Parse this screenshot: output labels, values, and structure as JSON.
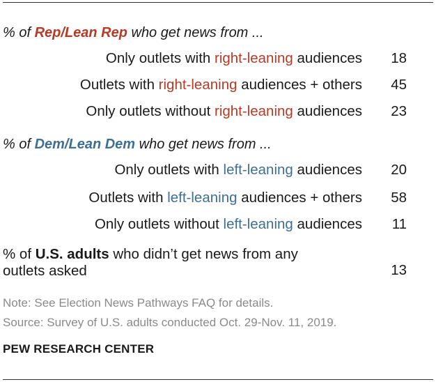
{
  "chart_data": {
    "type": "table",
    "sections": [
      {
        "prefix": "% of ",
        "group": "Rep/Lean Rep",
        "suffix": " who get news from ...",
        "rows": [
          {
            "pre": "Only outlets with ",
            "hl": "right-leaning",
            "post": " audiences",
            "value": 18
          },
          {
            "pre": "Outlets with ",
            "hl": "right-leaning",
            "post": " audiences + others",
            "value": 45
          },
          {
            "pre": "Only outlets without ",
            "hl": "right-leaning",
            "post": " audiences",
            "value": 23
          }
        ]
      },
      {
        "prefix": "% of ",
        "group": "Dem/Lean Dem",
        "suffix": " who get news from ...",
        "rows": [
          {
            "pre": "Only outlets with ",
            "hl": "left-leaning",
            "post": " audiences",
            "value": 20
          },
          {
            "pre": "Outlets with ",
            "hl": "left-leaning",
            "post": " audiences + others",
            "value": 58
          },
          {
            "pre": "Only outlets without ",
            "hl": "left-leaning",
            "post": " audiences",
            "value": 11
          }
        ]
      }
    ],
    "us_adults": {
      "prefix": "% of ",
      "group": "U.S. adults",
      "line1_suffix": " who didn’t get news from any",
      "line2": "outlets asked",
      "value": 13
    },
    "note": "Note: See Election News Pathways FAQ for details.",
    "source": "Source: Survey of U.S. adults conducted Oct. 29-Nov. 11, 2019.",
    "brand": "PEW RESEARCH CENTER"
  },
  "colors": {
    "rep": "#b63a26",
    "dem": "#3e6f93",
    "note": "#8a8a8a"
  }
}
